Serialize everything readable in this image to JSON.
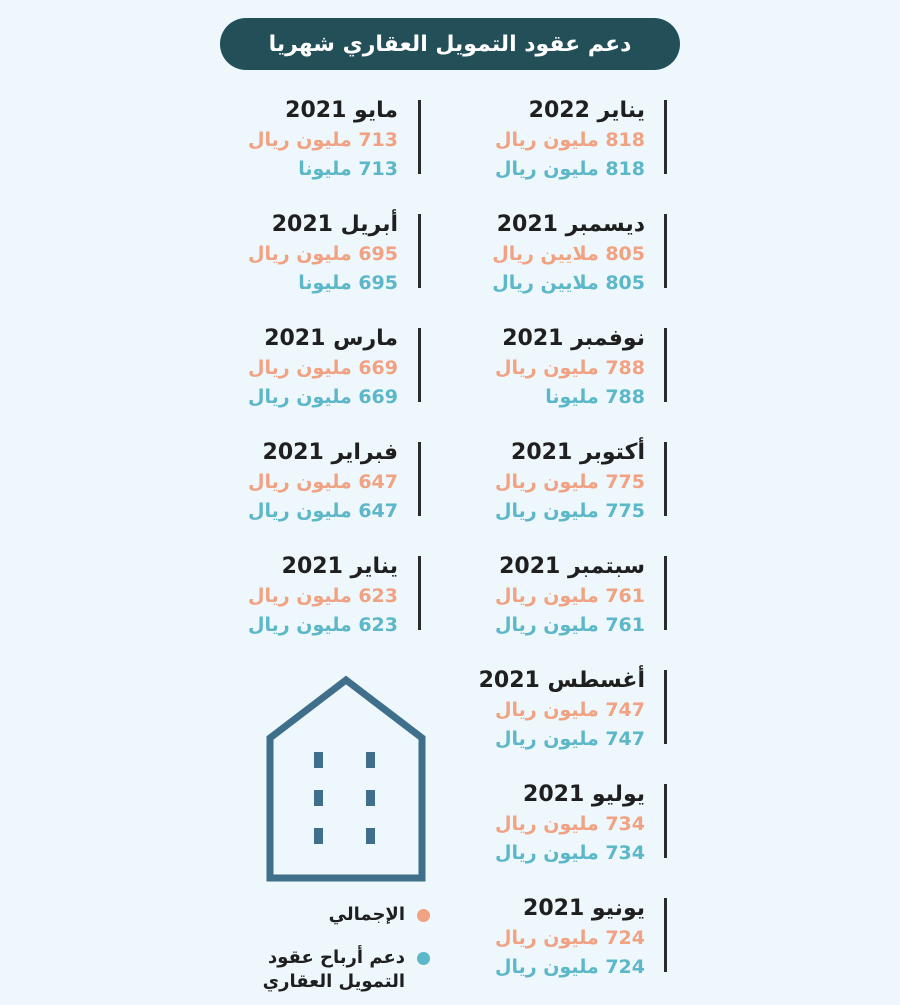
{
  "title": "دعم عقود التمويل العقاري شهريا",
  "colors": {
    "title_bg": "#234f58",
    "total": "#f0a283",
    "support": "#5cb7c8",
    "house": "#3f6f8a"
  },
  "right_column": [
    {
      "month": "يناير 2022",
      "total": "818 مليون ريال",
      "support": "818 مليون ريال"
    },
    {
      "month": "ديسمبر 2021",
      "total": "805 ملايين ريال",
      "support": "805 ملايين ريال"
    },
    {
      "month": "نوفمبر 2021",
      "total": "788 مليون ريال",
      "support": "788 مليونا"
    },
    {
      "month": "أكتوبر 2021",
      "total": "775 مليون ريال",
      "support": "775 مليون ريال"
    },
    {
      "month": "سبتمبر 2021",
      "total": "761 مليون ريال",
      "support": "761 مليون ريال"
    },
    {
      "month": "أغسطس 2021",
      "total": "747 مليون ريال",
      "support": "747 مليون ريال"
    },
    {
      "month": "يوليو 2021",
      "total": "734 مليون ريال",
      "support": "734 مليون ريال"
    },
    {
      "month": "يونيو 2021",
      "total": "724 مليون ريال",
      "support": "724 مليون ريال"
    }
  ],
  "left_column": [
    {
      "month": "مايو 2021",
      "total": "713 مليون ريال",
      "support": "713 مليونا"
    },
    {
      "month": "أبريل 2021",
      "total": "695 مليون ريال",
      "support": "695 مليونا"
    },
    {
      "month": "مارس 2021",
      "total": "669 مليون ريال",
      "support": "669 مليون ريال"
    },
    {
      "month": "فبراير 2021",
      "total": "647 مليون ريال",
      "support": "647 مليون ريال"
    },
    {
      "month": "يناير 2021",
      "total": "623 مليون ريال",
      "support": "623 مليون ريال"
    }
  ],
  "legend": {
    "total_label": "الإجمالي",
    "support_label_line1": "دعم أرباح عقود",
    "support_label_line2": "التمويل العقاري"
  },
  "icons": {
    "house": "building-icon"
  }
}
